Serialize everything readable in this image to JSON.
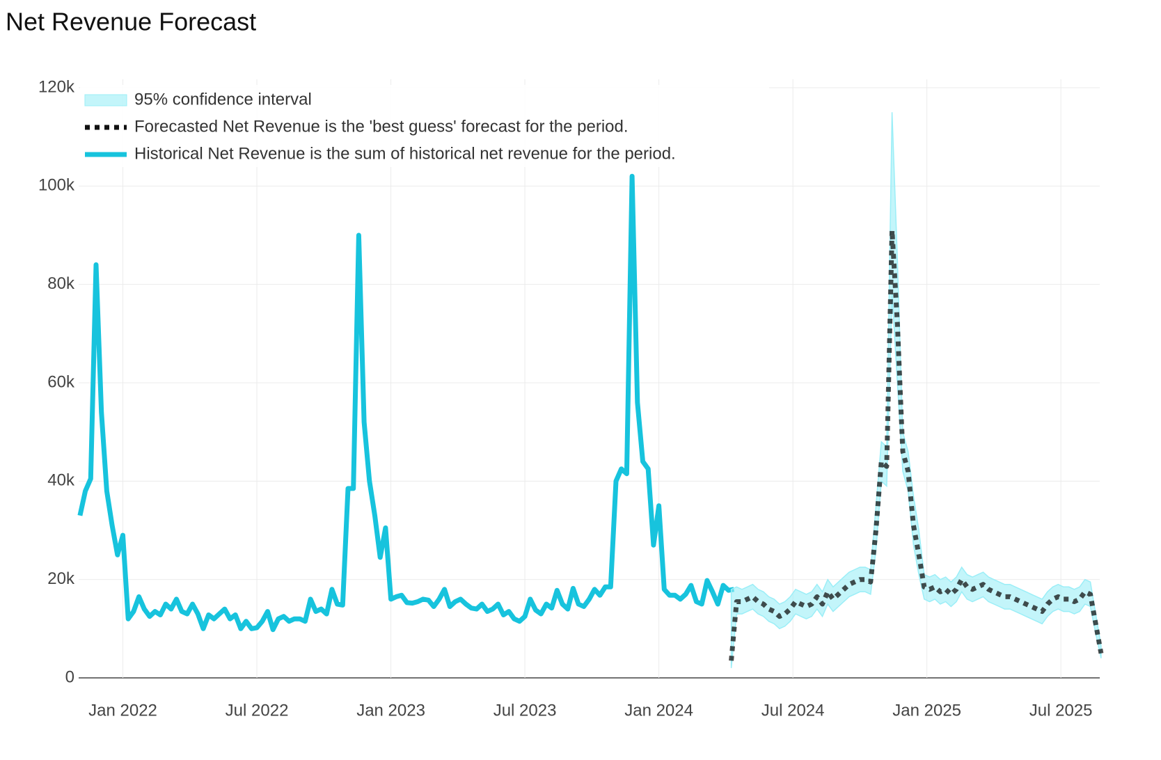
{
  "chart_data": {
    "type": "line",
    "title": "Net Revenue Forecast",
    "xlim": [
      2021.835,
      2025.645
    ],
    "xticks": [
      {
        "value": 2022,
        "label": "Jan 2022"
      },
      {
        "value": 2022.5,
        "label": "Jul 2022"
      },
      {
        "value": 2023,
        "label": "Jan 2023"
      },
      {
        "value": 2023.5,
        "label": "Jul 2023"
      },
      {
        "value": 2024,
        "label": "Jan 2024"
      },
      {
        "value": 2024.5,
        "label": "Jul 2024"
      },
      {
        "value": 2025,
        "label": "Jan 2025"
      },
      {
        "value": 2025.5,
        "label": "Jul 2025"
      }
    ],
    "ylim": [
      0,
      120
    ],
    "yticks": [
      0,
      {
        "value": 20,
        "label": "20k"
      },
      {
        "value": 40,
        "label": "40k"
      },
      {
        "value": 60,
        "label": "60k"
      },
      {
        "value": 80,
        "label": "80k"
      },
      {
        "value": 100,
        "label": "100k"
      },
      {
        "value": 120,
        "label": "120k"
      }
    ],
    "grid": true,
    "legend": "top-left",
    "series": [
      {
        "name": "95% confidence interval",
        "style": "band",
        "color": "#9beef7",
        "x": [
          2024.27,
          2024.29,
          2024.31,
          2024.33,
          2024.35,
          2024.37,
          2024.39,
          2024.41,
          2024.43,
          2024.45,
          2024.47,
          2024.49,
          2024.51,
          2024.53,
          2024.55,
          2024.57,
          2024.59,
          2024.61,
          2024.63,
          2024.65,
          2024.67,
          2024.69,
          2024.71,
          2024.73,
          2024.75,
          2024.77,
          2024.79,
          2024.81,
          2024.83,
          2024.85,
          2024.87,
          2024.89,
          2024.91,
          2024.93,
          2024.95,
          2024.97,
          2024.99,
          2025.01,
          2025.03,
          2025.05,
          2025.07,
          2025.09,
          2025.11,
          2025.13,
          2025.15,
          2025.17,
          2025.19,
          2025.21,
          2025.23,
          2025.25,
          2025.27,
          2025.29,
          2025.31,
          2025.33,
          2025.35,
          2025.37,
          2025.39,
          2025.41,
          2025.43,
          2025.45,
          2025.47,
          2025.49,
          2025.51,
          2025.53,
          2025.55,
          2025.57,
          2025.59,
          2025.61,
          2025.63,
          2025.65
        ],
        "upper": [
          18,
          18.5,
          18,
          18.5,
          19,
          18,
          17.5,
          16.5,
          16,
          15,
          15.5,
          16.5,
          18,
          17.5,
          17,
          17.5,
          19,
          17.5,
          20,
          18.5,
          19.5,
          20.5,
          21.5,
          22,
          22.5,
          22.5,
          22,
          35,
          48,
          47,
          115,
          85,
          50,
          46,
          37,
          30,
          21,
          20.5,
          21,
          20,
          20.5,
          19.5,
          20.5,
          22.5,
          21,
          20.5,
          21,
          21.5,
          20.5,
          20,
          19.5,
          19,
          19,
          18.5,
          18,
          17.5,
          17,
          16.5,
          16,
          17.5,
          18.5,
          19,
          18.5,
          18.5,
          18,
          18.5,
          20,
          19.5,
          13,
          6.5
        ],
        "lower": [
          2,
          13,
          13,
          13.5,
          14,
          13,
          12.5,
          11.5,
          11,
          10,
          10.5,
          11.5,
          13,
          12.5,
          12,
          12.5,
          14,
          12.5,
          15,
          13.5,
          14.5,
          15.5,
          16.5,
          17,
          17.5,
          17.5,
          17,
          26,
          40,
          39,
          78,
          60,
          42,
          38,
          27,
          21,
          16,
          15.5,
          16,
          15,
          15.5,
          14.5,
          15.5,
          17.5,
          16,
          15.5,
          16,
          16.5,
          15.5,
          15,
          14.5,
          14,
          14,
          13.5,
          13,
          12.5,
          12,
          11.5,
          11,
          12.5,
          13.5,
          14,
          13.5,
          13.5,
          13,
          13.5,
          15,
          14.5,
          9,
          4
        ]
      },
      {
        "name": "Forecasted Net Revenue is the 'best guess' forecast for the period.",
        "style": "dotted",
        "color": "#111111",
        "x": [
          2024.27,
          2024.29,
          2024.31,
          2024.33,
          2024.35,
          2024.37,
          2024.39,
          2024.41,
          2024.43,
          2024.45,
          2024.47,
          2024.49,
          2024.51,
          2024.53,
          2024.55,
          2024.57,
          2024.59,
          2024.61,
          2024.63,
          2024.65,
          2024.67,
          2024.69,
          2024.71,
          2024.73,
          2024.75,
          2024.77,
          2024.79,
          2024.81,
          2024.83,
          2024.85,
          2024.87,
          2024.89,
          2024.91,
          2024.93,
          2024.95,
          2024.97,
          2024.99,
          2025.01,
          2025.03,
          2025.05,
          2025.07,
          2025.09,
          2025.11,
          2025.13,
          2025.15,
          2025.17,
          2025.19,
          2025.21,
          2025.23,
          2025.25,
          2025.27,
          2025.29,
          2025.31,
          2025.33,
          2025.35,
          2025.37,
          2025.39,
          2025.41,
          2025.43,
          2025.45,
          2025.47,
          2025.49,
          2025.51,
          2025.53,
          2025.55,
          2025.57,
          2025.59,
          2025.61,
          2025.63,
          2025.65
        ],
        "values": [
          3.5,
          15.5,
          15.5,
          16,
          16.5,
          15.5,
          15,
          14,
          13.5,
          12.5,
          13,
          14,
          15.5,
          15,
          14.5,
          15,
          16.5,
          15,
          17.5,
          16,
          17,
          18,
          19,
          19.5,
          20,
          20,
          19.5,
          30,
          44,
          43,
          91,
          72,
          46,
          42,
          31,
          25,
          18.5,
          18,
          18.5,
          17.5,
          18,
          17,
          18,
          20,
          18.5,
          18,
          18.5,
          19,
          18,
          17.5,
          17,
          16.5,
          16.5,
          16,
          15.5,
          15,
          14.5,
          14,
          13.5,
          15,
          16,
          16.5,
          16,
          16,
          15.5,
          16,
          17.5,
          17,
          11,
          5
        ]
      },
      {
        "name": "Historical Net Revenue is the sum of historical net revenue for the period.",
        "style": "solid",
        "color": "#17c3dd",
        "x": [
          2021.84,
          2021.86,
          2021.88,
          2021.9,
          2021.92,
          2021.94,
          2021.96,
          2021.98,
          2022,
          2022.02,
          2022.04,
          2022.06,
          2022.08,
          2022.1,
          2022.12,
          2022.14,
          2022.16,
          2022.18,
          2022.2,
          2022.22,
          2022.24,
          2022.26,
          2022.28,
          2022.3,
          2022.32,
          2022.34,
          2022.36,
          2022.38,
          2022.4,
          2022.42,
          2022.44,
          2022.46,
          2022.48,
          2022.5,
          2022.52,
          2022.54,
          2022.56,
          2022.58,
          2022.6,
          2022.62,
          2022.64,
          2022.66,
          2022.68,
          2022.7,
          2022.72,
          2022.74,
          2022.76,
          2022.78,
          2022.8,
          2022.82,
          2022.84,
          2022.86,
          2022.88,
          2022.9,
          2022.92,
          2022.94,
          2022.96,
          2022.98,
          2023,
          2023.02,
          2023.04,
          2023.06,
          2023.08,
          2023.1,
          2023.12,
          2023.14,
          2023.16,
          2023.18,
          2023.2,
          2023.22,
          2023.24,
          2023.26,
          2023.28,
          2023.3,
          2023.32,
          2023.34,
          2023.36,
          2023.38,
          2023.4,
          2023.42,
          2023.44,
          2023.46,
          2023.48,
          2023.5,
          2023.52,
          2023.54,
          2023.56,
          2023.58,
          2023.6,
          2023.62,
          2023.64,
          2023.66,
          2023.68,
          2023.7,
          2023.72,
          2023.74,
          2023.76,
          2023.78,
          2023.8,
          2023.82,
          2023.84,
          2023.86,
          2023.88,
          2023.9,
          2023.92,
          2023.94,
          2023.96,
          2023.98,
          2024,
          2024.02,
          2024.04,
          2024.06,
          2024.08,
          2024.1,
          2024.12,
          2024.14,
          2024.16,
          2024.18,
          2024.2,
          2024.22,
          2024.24,
          2024.26,
          2024.28
        ],
        "values": [
          33,
          38,
          40.5,
          84,
          54,
          38,
          31,
          25,
          29,
          12,
          13.5,
          16.5,
          14,
          12.5,
          13.5,
          12.8,
          15,
          14,
          16,
          13.5,
          13,
          15,
          13,
          10,
          12.8,
          12,
          13,
          14,
          12,
          12.8,
          10,
          11.5,
          10,
          10.2,
          11.5,
          13.5,
          9.8,
          12,
          12.5,
          11.5,
          12,
          12,
          11.5,
          16,
          13.5,
          14,
          13,
          18,
          15,
          14.8,
          38.5,
          38.5,
          90,
          52,
          40,
          33,
          24.5,
          30.5,
          16,
          16.5,
          16.8,
          15.3,
          15.2,
          15.5,
          16,
          15.8,
          14.5,
          16,
          18,
          14.5,
          15.5,
          16,
          15,
          14.2,
          14,
          15,
          13.5,
          14,
          15,
          12.8,
          13.5,
          12,
          11.5,
          12.5,
          16,
          13.8,
          13,
          15,
          14.2,
          17.8,
          15,
          14,
          18.2,
          15,
          14.5,
          16,
          18,
          16.8,
          18.5,
          18.5,
          40,
          42.5,
          41.5,
          102,
          56,
          44,
          42.5,
          27,
          35,
          18,
          16.8,
          16.8,
          16,
          17,
          18.8,
          15.5,
          15,
          19.8,
          17.5,
          15,
          18.8,
          17.8,
          18
        ]
      }
    ]
  }
}
